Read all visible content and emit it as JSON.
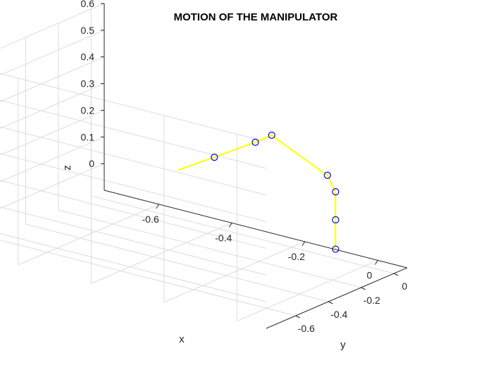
{
  "chart_data": {
    "type": "line3d",
    "title": "MOTION OF THE MANIPULATOR",
    "xlabel": "x",
    "ylabel": "y",
    "zlabel": "z",
    "xlim": [
      -0.75,
      0.08
    ],
    "ylim": [
      -0.78,
      0.08
    ],
    "zlim": [
      -0.1,
      0.6
    ],
    "xticks": [
      -0.6,
      -0.4,
      -0.2,
      0
    ],
    "xtick_labels": [
      "-0.6",
      "-0.4",
      "-0.2",
      "0"
    ],
    "yticks": [
      -0.6,
      -0.4,
      -0.2,
      0
    ],
    "ytick_labels": [
      "-0.6",
      "-0.4",
      "-0.2",
      "0"
    ],
    "zticks": [
      0,
      0.1,
      0.2,
      0.3,
      0.4,
      0.5,
      0.6
    ],
    "ztick_labels": [
      "0",
      "0.1",
      "0.2",
      "0.3",
      "0.4",
      "0.5",
      "0.6"
    ],
    "grid": true,
    "line_color": "#ffff00",
    "marker_edge_color": "#0000ff",
    "series": [
      {
        "x": [
          -0.08,
          -0.08,
          -0.08,
          -0.08,
          -0.08,
          -0.08,
          -0.08,
          -0.08
        ],
        "y": [
          0.0,
          0.0,
          0.0,
          -0.05,
          -0.39,
          -0.49,
          -0.74,
          -0.96
        ],
        "z": [
          -0.065,
          0.045,
          0.15,
          0.225,
          0.465,
          0.465,
          0.475,
          0.485
        ],
        "markers": [
          true,
          true,
          true,
          true,
          true,
          true,
          true,
          false
        ]
      }
    ]
  }
}
